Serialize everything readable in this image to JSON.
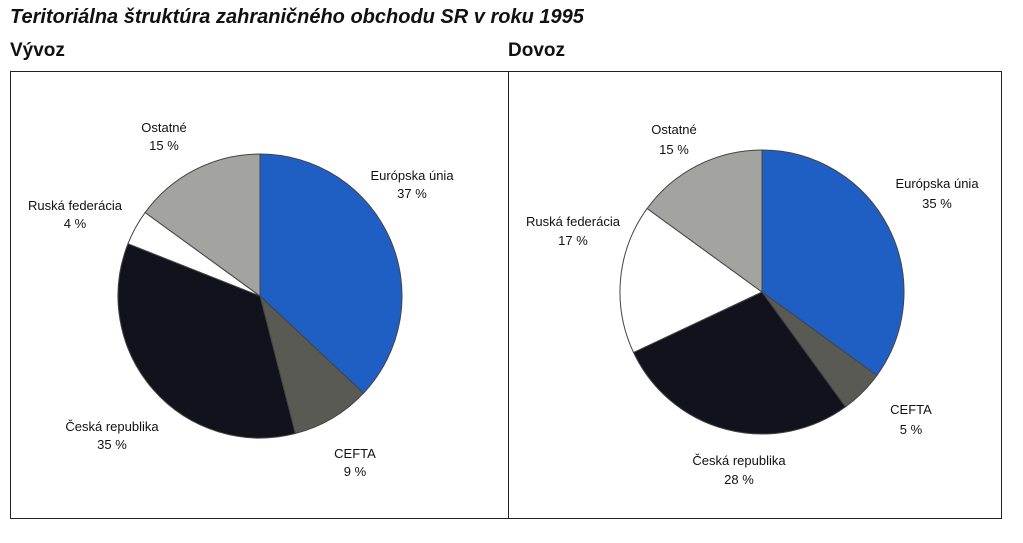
{
  "title": "Teritoriálna štruktúra zahraničného obchodu SR v roku 1995",
  "chart_data": [
    {
      "type": "pie",
      "title": "Vývoz",
      "slices": [
        {
          "label": "Európska únia",
          "value": 37,
          "value_label": "37 %",
          "color": "#1f5fc4"
        },
        {
          "label": "CEFTA",
          "value": 9,
          "value_label": "9 %",
          "color": "#5a5a55"
        },
        {
          "label": "Česká republika",
          "value": 35,
          "value_label": "35 %",
          "color": "#12121c"
        },
        {
          "label": "Ruská federácia",
          "value": 4,
          "value_label": "4 %",
          "color": "#ffffff"
        },
        {
          "label": "Ostatné",
          "value": 15,
          "value_label": "15 %",
          "color": "#a3a3a0"
        }
      ]
    },
    {
      "type": "pie",
      "title": "Dovoz",
      "slices": [
        {
          "label": "Európska únia",
          "value": 35,
          "value_label": "35 %",
          "color": "#1f5fc4"
        },
        {
          "label": "CEFTA",
          "value": 5,
          "value_label": "5 %",
          "color": "#5a5a55"
        },
        {
          "label": "Česká republika",
          "value": 28,
          "value_label": "28 %",
          "color": "#12121c"
        },
        {
          "label": "Ruská federácia",
          "value": 17,
          "value_label": "17 %",
          "color": "#ffffff"
        },
        {
          "label": "Ostatné",
          "value": 15,
          "value_label": "15 %",
          "color": "#a3a3a0"
        }
      ]
    }
  ]
}
